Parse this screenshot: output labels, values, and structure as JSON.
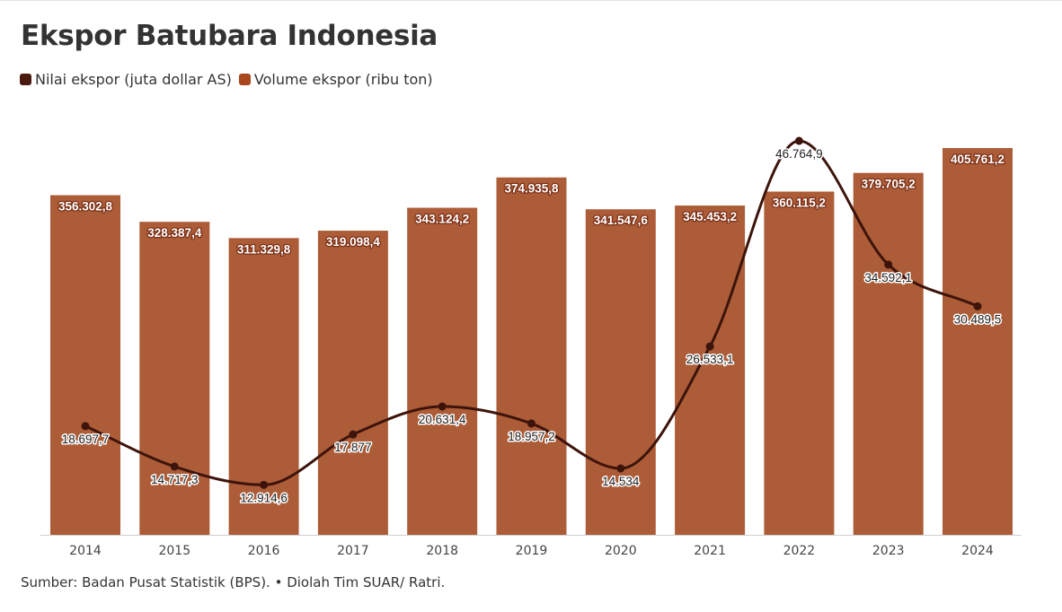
{
  "title": "Ekspor Batubara Indonesia",
  "legend": {
    "line_label": "Nilai ekspor (juta dollar AS)",
    "bar_label": "Volume ekspor (ribu ton)"
  },
  "source": "Sumber: Badan Pusat Statistik (BPS). • Diolah Tim SUAR/ Ratri.",
  "colors": {
    "bar": "#ad5c38",
    "line": "#3d140b",
    "line_swatch": "#4a1a0f",
    "bar_swatch": "#a8461c"
  },
  "chart_data": {
    "type": "bar",
    "categories": [
      "2014",
      "2015",
      "2016",
      "2017",
      "2018",
      "2019",
      "2020",
      "2021",
      "2022",
      "2023",
      "2024"
    ],
    "series": [
      {
        "name": "Volume ekspor (ribu ton)",
        "type": "bar",
        "values": [
          356302.8,
          328387.4,
          311329.8,
          319098.4,
          343124.2,
          374935.8,
          341547.6,
          345453.2,
          360115.2,
          379705.2,
          405761.2
        ],
        "labels": [
          "356.302,8",
          "328.387,4",
          "311.329,8",
          "319.098,4",
          "343.124,2",
          "374.935,8",
          "341.547,6",
          "345.453,2",
          "360.115,2",
          "379.705,2",
          "405.761,2"
        ]
      },
      {
        "name": "Nilai ekspor (juta dollar AS)",
        "type": "line",
        "values": [
          18697.7,
          14717.3,
          12914.6,
          17877,
          20631.4,
          18957.2,
          14534,
          26533.1,
          46764.9,
          34592.1,
          30489.5
        ],
        "labels": [
          "18.697,7",
          "14.717,3",
          "12.914,6",
          "17.877",
          "20.631,4",
          "18.957,2",
          "14.534",
          "26.533,1",
          "46.764,9",
          "34.592,1",
          "30.489,5"
        ]
      }
    ],
    "bar_axis_range": [
      0,
      405761.2
    ],
    "line_axis_range": [
      8000,
      46764.9
    ],
    "grid": false,
    "legend_position": "top-left"
  }
}
